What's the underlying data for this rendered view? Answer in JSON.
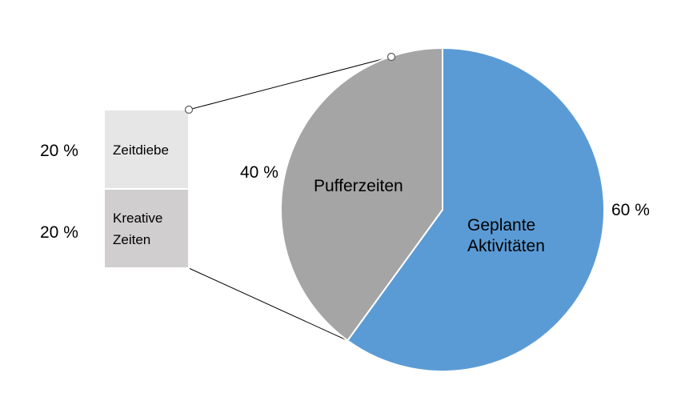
{
  "chart_data": {
    "type": "pie",
    "title": "",
    "series": [
      {
        "values": [
          60,
          40
        ],
        "categories": [
          "Geplante Aktivitäten",
          "Pufferzeiten"
        ],
        "value_labels": [
          "60 %",
          "40 %"
        ],
        "colors": [
          "#5b9bd5",
          "#a5a5a5"
        ]
      }
    ],
    "breakdown": {
      "of": "Pufferzeiten",
      "type": "stacked-bar",
      "categories": [
        "Zeitdiebe",
        "Kreative Zeiten"
      ],
      "values": [
        20,
        20
      ],
      "value_labels": [
        "20 %",
        "20 %"
      ],
      "colors": [
        "#e7e6e6",
        "#d0cece"
      ]
    },
    "legend": "none",
    "grid": false
  }
}
